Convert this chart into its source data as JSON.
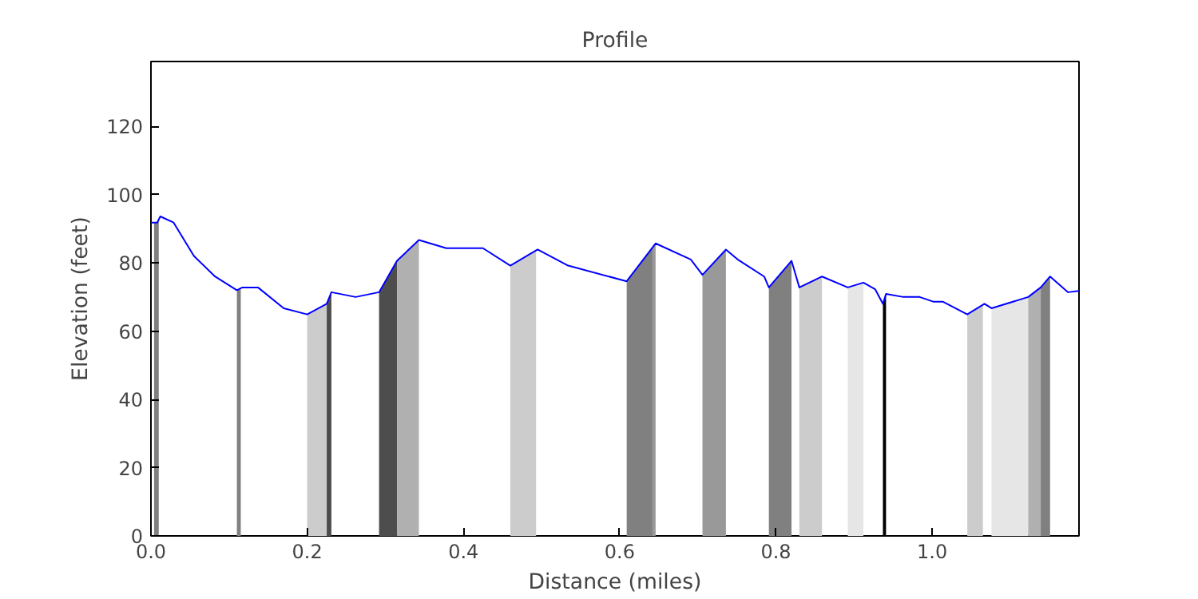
{
  "chart_data": {
    "type": "line",
    "title": "Profile",
    "xlabel": "Distance (miles)",
    "ylabel": "Elevation (feet)",
    "xlim": [
      0,
      1.188
    ],
    "ylim": [
      0,
      139
    ],
    "xticks": [
      {
        "value": 0,
        "label": "0.0"
      },
      0.2,
      0.4,
      0.6,
      0.8,
      {
        "value": 1,
        "label": "1.0"
      }
    ],
    "yticks": [
      0,
      20,
      40,
      60,
      80,
      100,
      120
    ],
    "grid": false,
    "series": [
      {
        "type": "area",
        "color": "#808080",
        "x": [
          0.004,
          0.008,
          0.01
        ],
        "values": [
          91.8,
          91.8,
          92.7
        ]
      },
      {
        "type": "area",
        "color": "#808080",
        "x": [
          0.11,
          0.115
        ],
        "values": [
          72,
          72.5
        ]
      },
      {
        "type": "area",
        "color": "#cccccc",
        "x": [
          0.2,
          0.225
        ],
        "values": [
          64.9,
          68
        ]
      },
      {
        "type": "area",
        "color": "#4d4d4d",
        "x": [
          0.225,
          0.231
        ],
        "values": [
          68,
          71.4
        ]
      },
      {
        "type": "area",
        "color": "#4d4d4d",
        "x": [
          0.292,
          0.315
        ],
        "values": [
          71.4,
          80.6
        ]
      },
      {
        "type": "area",
        "color": "#b0b0b0",
        "x": [
          0.315,
          0.343
        ],
        "values": [
          80.6,
          86.7
        ]
      },
      {
        "type": "area",
        "color": "#cccccc",
        "x": [
          0.46,
          0.493
        ],
        "values": [
          79.2,
          83.6
        ]
      },
      {
        "type": "area",
        "color": "#808080",
        "x": [
          0.609,
          0.642
        ],
        "values": [
          74.6,
          84.5
        ]
      },
      {
        "type": "area",
        "color": "#999999",
        "x": [
          0.642,
          0.646
        ],
        "values": [
          84.5,
          85.7
        ]
      },
      {
        "type": "area",
        "color": "#999999",
        "x": [
          0.706,
          0.736
        ],
        "values": [
          76.5,
          83.9
        ]
      },
      {
        "type": "area",
        "color": "#808080",
        "x": [
          0.791,
          0.82
        ],
        "values": [
          72.8,
          80.6
        ]
      },
      {
        "type": "area",
        "color": "#cccccc",
        "x": [
          0.83,
          0.859
        ],
        "values": [
          72.8,
          76
        ]
      },
      {
        "type": "area",
        "color": "#e6e6e6",
        "x": [
          0.892,
          0.912
        ],
        "values": [
          72.8,
          74.2
        ]
      },
      {
        "type": "area",
        "color": "#000000",
        "x": [
          0.937,
          0.941
        ],
        "values": [
          68,
          70.9
        ]
      },
      {
        "type": "area",
        "color": "#cccccc",
        "x": [
          1.045,
          1.065
        ],
        "values": [
          64.9,
          67.7
        ]
      },
      {
        "type": "area",
        "color": "#e6e6e6",
        "x": [
          1.076,
          1.123
        ],
        "values": [
          66.7,
          70
        ]
      },
      {
        "type": "area",
        "color": "#b0b0b0",
        "x": [
          1.123,
          1.139
        ],
        "values": [
          70,
          72.8
        ]
      },
      {
        "type": "area",
        "color": "#808080",
        "x": [
          1.139,
          1.151
        ],
        "values": [
          72.8,
          76
        ]
      },
      {
        "color": "#0000ff",
        "x": [
          0,
          0.008,
          0.012,
          0.029,
          0.055,
          0.082,
          0.11,
          0.117,
          0.137,
          0.17,
          0.2,
          0.225,
          0.231,
          0.262,
          0.292,
          0.315,
          0.343,
          0.378,
          0.425,
          0.46,
          0.495,
          0.534,
          0.609,
          0.646,
          0.691,
          0.706,
          0.736,
          0.751,
          0.785,
          0.791,
          0.82,
          0.83,
          0.859,
          0.892,
          0.912,
          0.927,
          0.937,
          0.941,
          0.963,
          0.984,
          1.002,
          1.014,
          1.045,
          1.067,
          1.076,
          1.123,
          1.139,
          1.151,
          1.174,
          1.188
        ],
        "values": [
          91.8,
          91.8,
          93.6,
          91.8,
          82,
          76,
          72,
          72.8,
          72.8,
          66.7,
          64.9,
          68,
          71.4,
          70,
          71.4,
          80.6,
          86.7,
          84.3,
          84.3,
          79.2,
          83.9,
          79.2,
          74.6,
          85.7,
          81,
          76.5,
          83.9,
          81,
          76,
          72.8,
          80.6,
          72.8,
          76,
          72.8,
          74.2,
          72.3,
          68,
          70.9,
          70,
          70,
          68.6,
          68.6,
          64.9,
          68,
          66.7,
          70,
          72.8,
          76,
          71.4,
          71.8
        ]
      }
    ]
  }
}
